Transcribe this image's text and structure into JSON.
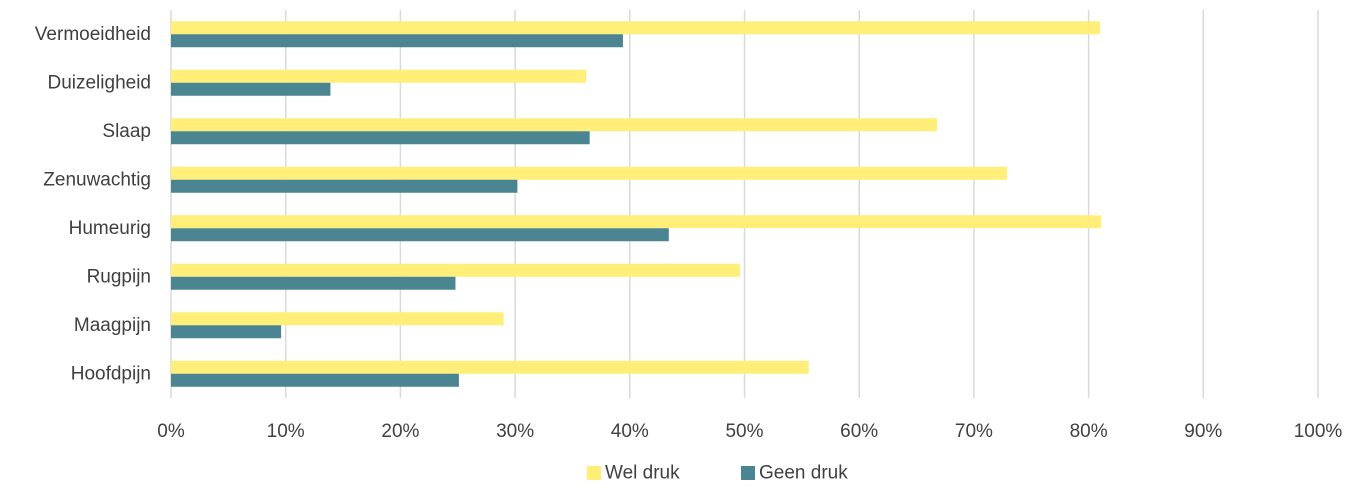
{
  "chart_data": {
    "type": "bar",
    "orientation": "horizontal",
    "categories": [
      "Vermoeidheid",
      "Duizeligheid",
      "Slaap",
      "Zenuwachtig",
      "Humeurig",
      "Rugpijn",
      "Maagpijn",
      "Hoofdpijn"
    ],
    "series": [
      {
        "name": "Wel druk",
        "color": "#FFEE78",
        "values": [
          81,
          36.2,
          66.8,
          72.9,
          81.1,
          49.6,
          29,
          55.6
        ]
      },
      {
        "name": "Geen druk",
        "color": "#4A8591",
        "values": [
          39.4,
          13.9,
          36.5,
          30.2,
          43.4,
          24.8,
          9.6,
          25.1
        ]
      }
    ],
    "xlim": [
      0,
      100
    ],
    "x_ticks": [
      "0%",
      "10%",
      "20%",
      "30%",
      "40%",
      "50%",
      "60%",
      "70%",
      "80%",
      "90%",
      "100%"
    ],
    "x_tick_values": [
      0,
      10,
      20,
      30,
      40,
      50,
      60,
      70,
      80,
      90,
      100
    ],
    "grid": "vertical",
    "legend_position": "bottom",
    "gridline_color": "#D9D9D9",
    "text_color": "#404040"
  }
}
